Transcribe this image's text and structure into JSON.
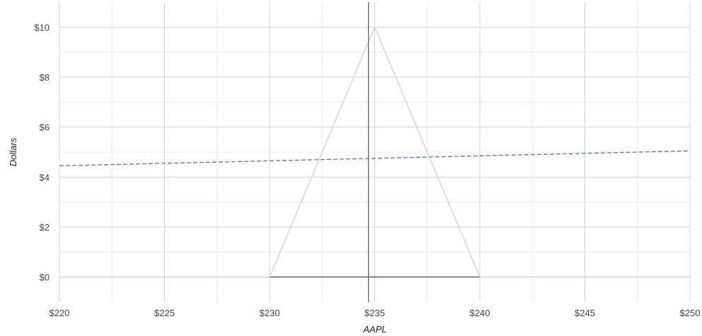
{
  "chart_data": {
    "type": "line",
    "xlabel": "AAPL",
    "ylabel": "Dollars",
    "xlim": [
      220,
      250
    ],
    "ylim": [
      -1,
      11
    ],
    "x_ticks": [
      220,
      225,
      230,
      235,
      240,
      245,
      250
    ],
    "x_tick_labels": [
      "$220",
      "$225",
      "$230",
      "$235",
      "$240",
      "$245",
      "$250"
    ],
    "y_ticks": [
      0,
      2,
      4,
      6,
      8,
      10
    ],
    "y_tick_labels": [
      "$0",
      "$2",
      "$4",
      "$6",
      "$8",
      "$10"
    ],
    "grid": true,
    "current_price": 234.7,
    "series": [
      {
        "style": "solid",
        "color": "#d0d0d0",
        "x": [
          220,
          230,
          235,
          240,
          250
        ],
        "y": [
          0,
          0,
          10,
          0,
          0
        ]
      },
      {
        "style": "dashed",
        "color": "#5a73a0",
        "x": [
          220,
          250
        ],
        "y": [
          4.45,
          5.05
        ]
      }
    ]
  }
}
